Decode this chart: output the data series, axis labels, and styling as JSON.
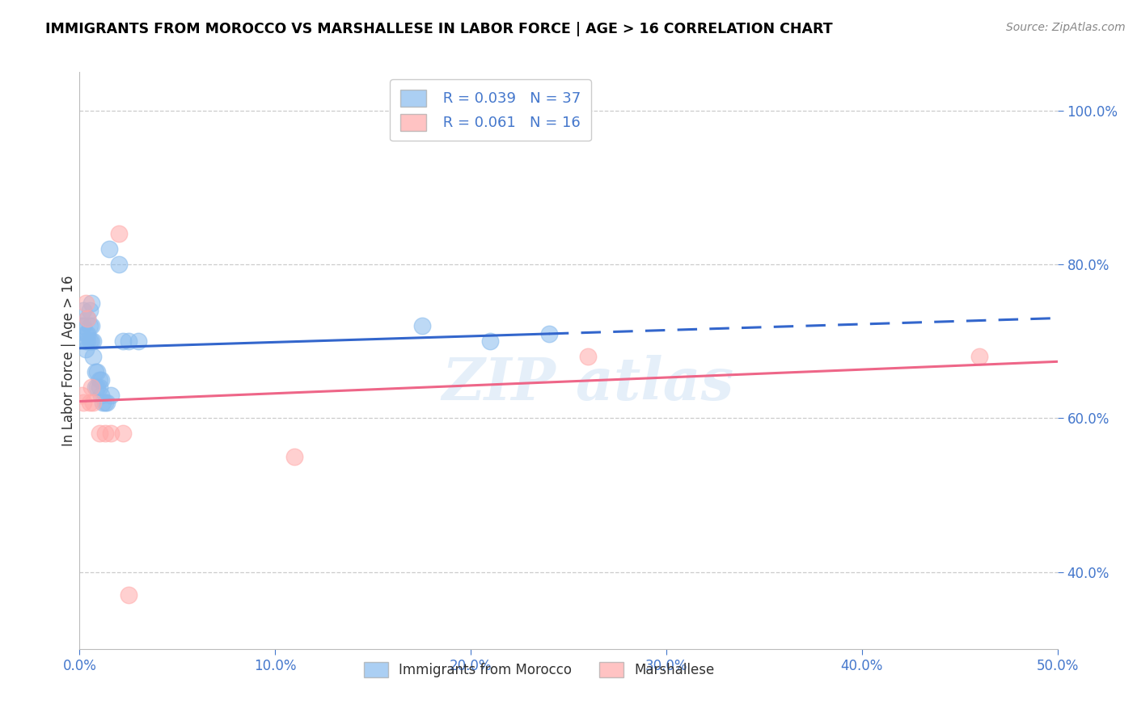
{
  "title": "IMMIGRANTS FROM MOROCCO VS MARSHALLESE IN LABOR FORCE | AGE > 16 CORRELATION CHART",
  "source": "Source: ZipAtlas.com",
  "ylabel": "In Labor Force | Age > 16",
  "xlabel_ticks": [
    "0.0%",
    "10.0%",
    "20.0%",
    "30.0%",
    "40.0%",
    "50.0%"
  ],
  "xlabel_vals": [
    0.0,
    0.1,
    0.2,
    0.3,
    0.4,
    0.5
  ],
  "ylabel_ticks": [
    "100.0%",
    "80.0%",
    "60.0%",
    "40.0%"
  ],
  "ylabel_vals": [
    1.0,
    0.8,
    0.6,
    0.4
  ],
  "xlim": [
    0.0,
    0.5
  ],
  "ylim": [
    0.3,
    1.05
  ],
  "morocco_color": "#88bbee",
  "marshallese_color": "#ffaaaa",
  "morocco_R": 0.039,
  "morocco_N": 37,
  "marshallese_R": 0.061,
  "marshallese_N": 16,
  "morocco_x": [
    0.001,
    0.002,
    0.002,
    0.003,
    0.003,
    0.003,
    0.004,
    0.004,
    0.004,
    0.005,
    0.005,
    0.005,
    0.006,
    0.006,
    0.006,
    0.007,
    0.007,
    0.008,
    0.008,
    0.009,
    0.009,
    0.01,
    0.01,
    0.011,
    0.011,
    0.012,
    0.013,
    0.014,
    0.015,
    0.016,
    0.02,
    0.022,
    0.025,
    0.03,
    0.175,
    0.21,
    0.24
  ],
  "morocco_y": [
    0.72,
    0.74,
    0.72,
    0.71,
    0.7,
    0.69,
    0.73,
    0.71,
    0.7,
    0.74,
    0.72,
    0.7,
    0.75,
    0.72,
    0.7,
    0.7,
    0.68,
    0.66,
    0.64,
    0.66,
    0.64,
    0.65,
    0.64,
    0.65,
    0.63,
    0.62,
    0.62,
    0.62,
    0.82,
    0.63,
    0.8,
    0.7,
    0.7,
    0.7,
    0.72,
    0.7,
    0.71
  ],
  "marshallese_x": [
    0.001,
    0.002,
    0.003,
    0.004,
    0.005,
    0.006,
    0.007,
    0.01,
    0.013,
    0.016,
    0.02,
    0.022,
    0.025,
    0.11,
    0.26,
    0.46
  ],
  "marshallese_y": [
    0.63,
    0.62,
    0.75,
    0.73,
    0.62,
    0.64,
    0.62,
    0.58,
    0.58,
    0.58,
    0.84,
    0.58,
    0.37,
    0.55,
    0.68,
    0.68
  ],
  "watermark": "ZIP atlas",
  "background_color": "#ffffff",
  "grid_color": "#cccccc",
  "tick_color": "#4477cc",
  "trendline_blue": "#3366cc",
  "trendline_pink": "#ee6688",
  "legend_box_color": "#dddddd"
}
